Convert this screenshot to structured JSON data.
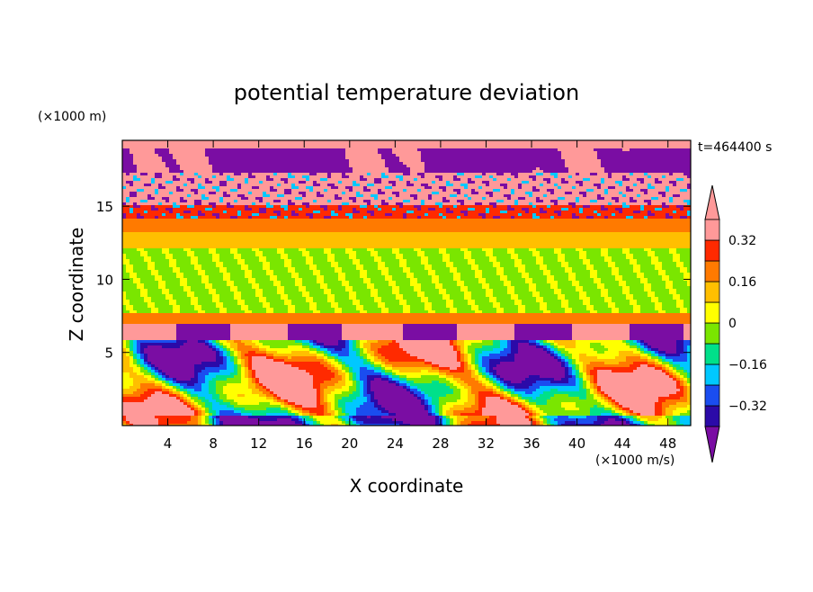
{
  "chart_data": {
    "type": "heatmap",
    "title": "potential temperature deviation",
    "time_label": "t=464400 s",
    "xlabel": "X coordinate",
    "ylabel": "Z coordinate",
    "x_unit": "(×1000 m/s)",
    "y_unit": "(×1000 m)",
    "xlim": [
      0,
      50
    ],
    "ylim": [
      0,
      19.5
    ],
    "x_ticks": [
      4,
      8,
      12,
      16,
      20,
      24,
      28,
      32,
      36,
      40,
      44,
      48
    ],
    "y_ticks": [
      5,
      10,
      15
    ],
    "colorbar": {
      "levels": [
        -0.48,
        -0.4,
        -0.32,
        -0.24,
        -0.16,
        -0.08,
        0,
        0.08,
        0.16,
        0.24,
        0.32,
        0.4,
        0.48
      ],
      "tick_labels": [
        "0.32",
        "0.16",
        "0",
        "−0.16",
        "−0.32"
      ],
      "tick_values": [
        0.32,
        0.16,
        0,
        -0.16,
        -0.32
      ],
      "colors": [
        "#7a0da3",
        "#2b0aa8",
        "#1a4df0",
        "#00c8ff",
        "#00e08a",
        "#7ae600",
        "#ffff00",
        "#ffbf00",
        "#ff7a00",
        "#ff2a00",
        "#ff9999"
      ]
    },
    "bands": [
      {
        "z": [
          19.0,
          19.5
        ],
        "value": 0.5
      },
      {
        "z": [
          17.2,
          19.0
        ],
        "value": -0.5
      },
      {
        "z": [
          15.0,
          17.2
        ],
        "value": 0.5
      },
      {
        "z": [
          14.2,
          15.0
        ],
        "value": 0.3
      },
      {
        "z": [
          13.2,
          14.2
        ],
        "value": 0.2
      },
      {
        "z": [
          12.2,
          13.2
        ],
        "value": 0.1
      },
      {
        "z": [
          7.6,
          12.2
        ],
        "value": -0.02
      },
      {
        "z": [
          7.0,
          7.6
        ],
        "value": 0.2
      },
      {
        "z": [
          5.8,
          7.0
        ],
        "value": 0.5
      },
      {
        "z": [
          0,
          5.8
        ],
        "value": 0.0
      }
    ]
  }
}
